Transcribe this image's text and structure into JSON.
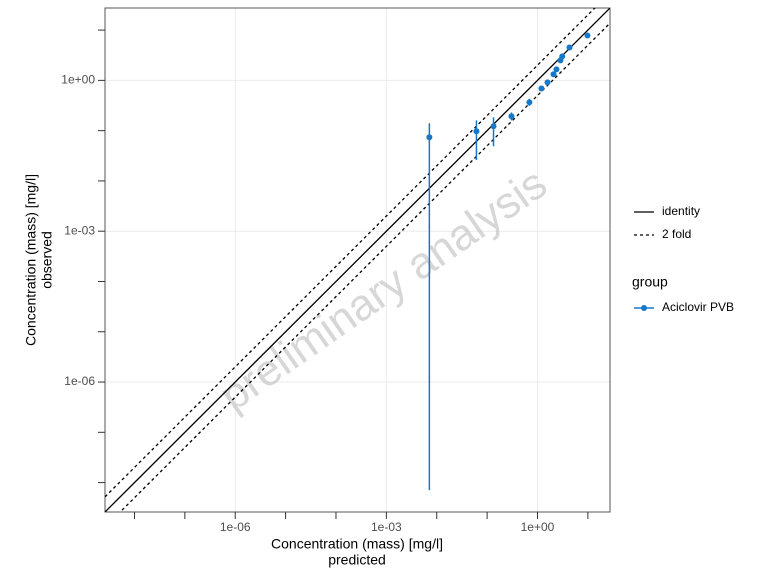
{
  "chart_data": {
    "type": "scatter",
    "watermark": "preliminary analysis",
    "xlabel": [
      "Concentration (mass) [mg/l]",
      "predicted"
    ],
    "ylabel": [
      "Concentration (mass) [mg/l]",
      "observed"
    ],
    "log_x": true,
    "log_y": true,
    "grid": true,
    "xlim": [
      2.6e-09,
      27.5
    ],
    "ylim": [
      2.6e-09,
      27.5
    ],
    "xticks": [
      {
        "value": 1e-06,
        "label": "1e-06"
      },
      {
        "value": 0.001,
        "label": "1e-03"
      },
      {
        "value": 1,
        "label": "1e+00"
      }
    ],
    "yticks": [
      {
        "value": 1e-06,
        "label": "1e-06"
      },
      {
        "value": 0.001,
        "label": "1e-03"
      },
      {
        "value": 1,
        "label": "1e+00"
      }
    ],
    "xminor": [
      1e-08,
      1e-07,
      1e-05,
      0.0001,
      0.01,
      0.1,
      10
    ],
    "yminor": [
      1e-08,
      1e-07,
      1e-05,
      0.0001,
      0.01,
      0.1,
      10
    ],
    "reference_lines": [
      {
        "name": "identity",
        "fold": 1,
        "dash": false
      },
      {
        "name": "2 fold",
        "fold": 2,
        "dash": true
      }
    ],
    "legend_position": "right",
    "legend_title": "group",
    "series": [
      {
        "name": "Aciclovir PVB",
        "color": "#1777c9",
        "x": [
          0.00714,
          0.0614,
          0.134,
          0.304,
          0.69,
          1.2,
          1.58,
          2.08,
          2.38,
          2.86,
          3.1,
          4.32,
          9.8
        ],
        "values": [
          0.0737,
          0.097,
          0.122,
          0.193,
          0.366,
          0.69,
          0.91,
          1.32,
          1.65,
          2.5,
          3.0,
          4.5,
          7.8
        ],
        "ymin": [
          7.1e-09,
          0.026,
          0.049,
          0.16,
          0.31,
          0.62,
          0.84,
          1.2,
          1.5,
          2.3,
          2.8,
          4.2,
          7.3
        ],
        "ymax": [
          0.14,
          0.16,
          0.184,
          0.23,
          0.43,
          0.77,
          0.99,
          1.45,
          1.8,
          2.7,
          3.2,
          4.8,
          8.3
        ]
      }
    ]
  }
}
